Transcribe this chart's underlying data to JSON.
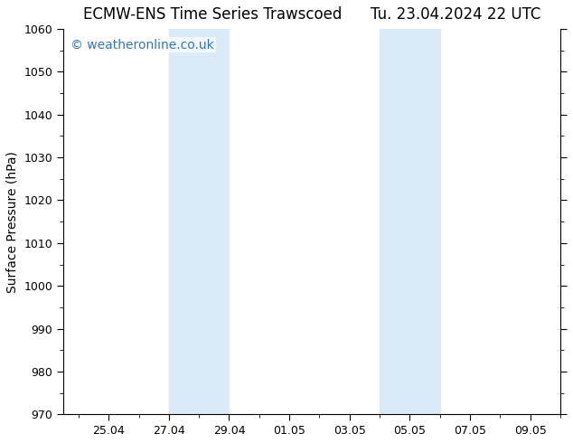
{
  "title_left": "ECMW-ENS Time Series Trawscoed",
  "title_right": "Tu. 23.04.2024 22 UTC",
  "ylabel": "Surface Pressure (hPa)",
  "ylim": [
    970,
    1060
  ],
  "yticks": [
    970,
    980,
    990,
    1000,
    1010,
    1020,
    1030,
    1040,
    1050,
    1060
  ],
  "xlim": [
    0.5,
    17.0
  ],
  "xtick_labels": [
    "25.04",
    "27.04",
    "29.04",
    "01.05",
    "03.05",
    "05.05",
    "07.05",
    "09.05"
  ],
  "xtick_positions": [
    2,
    4,
    6,
    8,
    10,
    12,
    14,
    16
  ],
  "shaded_regions": [
    {
      "x_start": 4,
      "x_end": 6
    },
    {
      "x_start": 11,
      "x_end": 13
    }
  ],
  "shaded_color": "#daeaf7",
  "background_color": "#ffffff",
  "plot_bg_color": "#ffffff",
  "watermark_text": "© weatheronline.co.uk",
  "watermark_color": "#3377bb",
  "title_fontsize": 12,
  "label_fontsize": 10,
  "tick_fontsize": 9,
  "watermark_fontsize": 10
}
